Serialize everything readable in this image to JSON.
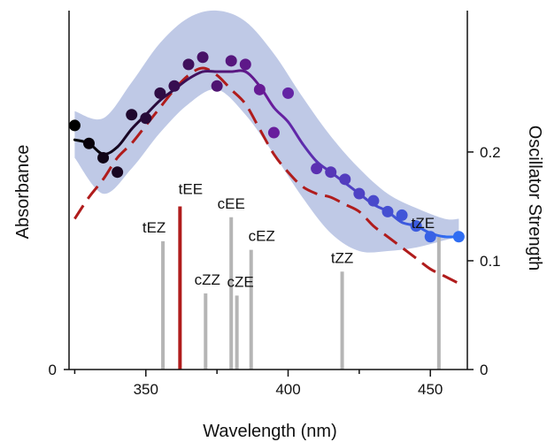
{
  "chart_data": {
    "type": "line",
    "title": "",
    "xlabel": "Wavelength (nm)",
    "ylabel_left": "Absorbance",
    "ylabel_right": "Oscillator Strength",
    "xlim": [
      323,
      463
    ],
    "xticks": [
      "350",
      "400",
      "450"
    ],
    "xtick_values": [
      350,
      400,
      450
    ],
    "ylim_left": [
      0,
      1.0
    ],
    "left_ticks": [
      "0"
    ],
    "ylim_right": [
      0,
      0.33
    ],
    "right_ticks": [
      "0",
      "0.1",
      "0.2"
    ],
    "right_tick_values": [
      0,
      0.1,
      0.2
    ],
    "grid": false,
    "legend": "none",
    "series": [
      {
        "kind": "confidence-band",
        "color": "#b4c0e2",
        "x": [
          325,
          335,
          345,
          355,
          365,
          375,
          385,
          395,
          405,
          415,
          425,
          435,
          445,
          455,
          460
        ],
        "upper": [
          0.72,
          0.7,
          0.8,
          0.91,
          0.98,
          1.0,
          0.97,
          0.88,
          0.76,
          0.65,
          0.56,
          0.49,
          0.45,
          0.42,
          0.42
        ],
        "lower": [
          0.59,
          0.49,
          0.56,
          0.66,
          0.74,
          0.78,
          0.71,
          0.6,
          0.48,
          0.38,
          0.33,
          0.33,
          0.34,
          0.36,
          0.37
        ]
      },
      {
        "kind": "measured-points",
        "color_start": "#000000",
        "color_mid": "#6a1b9a",
        "color_end": "#2f6df2",
        "x": [
          325,
          330,
          335,
          340,
          345,
          350,
          355,
          360,
          365,
          370,
          375,
          380,
          385,
          390,
          395,
          400,
          410,
          415,
          420,
          425,
          430,
          435,
          440,
          445,
          450,
          460
        ],
        "y": [
          0.68,
          0.63,
          0.59,
          0.55,
          0.71,
          0.7,
          0.77,
          0.79,
          0.85,
          0.87,
          0.79,
          0.86,
          0.85,
          0.78,
          0.66,
          0.77,
          0.56,
          0.55,
          0.53,
          0.49,
          0.47,
          0.44,
          0.43,
          0.4,
          0.37,
          0.37
        ]
      },
      {
        "kind": "smoothed-line",
        "color_start": "#000000",
        "color_mid": "#6a1b9a",
        "color_end": "#2f6df2",
        "x": [
          325,
          330,
          335,
          340,
          345,
          350,
          355,
          360,
          365,
          370,
          375,
          380,
          385,
          390,
          395,
          400,
          405,
          410,
          415,
          420,
          425,
          430,
          435,
          440,
          445,
          450,
          455,
          460
        ],
        "y": [
          0.64,
          0.63,
          0.6,
          0.62,
          0.67,
          0.71,
          0.75,
          0.78,
          0.81,
          0.83,
          0.83,
          0.83,
          0.83,
          0.79,
          0.73,
          0.69,
          0.63,
          0.58,
          0.55,
          0.52,
          0.49,
          0.46,
          0.44,
          0.41,
          0.4,
          0.38,
          0.37,
          0.37
        ]
      },
      {
        "kind": "computed-spectrum",
        "color": "#b01c1c",
        "style": "dashed",
        "x": [
          325,
          330,
          335,
          340,
          345,
          350,
          355,
          360,
          365,
          370,
          375,
          380,
          385,
          390,
          395,
          400,
          405,
          410,
          415,
          420,
          425,
          430,
          435,
          440,
          445,
          450,
          455,
          460
        ],
        "y": [
          0.42,
          0.48,
          0.53,
          0.59,
          0.63,
          0.68,
          0.73,
          0.78,
          0.82,
          0.84,
          0.82,
          0.78,
          0.74,
          0.67,
          0.6,
          0.55,
          0.51,
          0.49,
          0.48,
          0.46,
          0.44,
          0.4,
          0.37,
          0.34,
          0.31,
          0.28,
          0.26,
          0.24
        ]
      }
    ],
    "sticks": [
      {
        "label": "tEZ",
        "x": 356,
        "f": 0.118,
        "color": "#b5b5b5"
      },
      {
        "label": "tEE",
        "x": 362,
        "f": 0.15,
        "color": "#b01c1c"
      },
      {
        "label": "cZZ",
        "x": 371,
        "f": 0.07,
        "color": "#b5b5b5"
      },
      {
        "label": "cEE",
        "x": 380,
        "f": 0.14,
        "color": "#b5b5b5"
      },
      {
        "label": "cZE",
        "x": 382,
        "f": 0.068,
        "color": "#b5b5b5"
      },
      {
        "label": "cEZ",
        "x": 387,
        "f": 0.11,
        "color": "#b5b5b5"
      },
      {
        "label": "tZZ",
        "x": 419,
        "f": 0.09,
        "color": "#b5b5b5"
      },
      {
        "label": "tZE",
        "x": 453,
        "f": 0.122,
        "color": "#b5b5b5"
      }
    ]
  }
}
